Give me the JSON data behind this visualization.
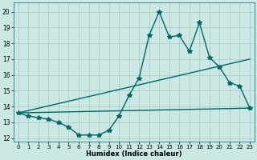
{
  "title": "",
  "xlabel": "Humidex (Indice chaleur)",
  "background_color": "#cce8e4",
  "grid_color": "#aacccc",
  "line_color": "#006666",
  "xlim": [
    -0.5,
    23.5
  ],
  "ylim": [
    11.8,
    20.6
  ],
  "yticks": [
    12,
    13,
    14,
    15,
    16,
    17,
    18,
    19,
    20
  ],
  "xticks": [
    0,
    1,
    2,
    3,
    4,
    5,
    6,
    7,
    8,
    9,
    10,
    11,
    12,
    13,
    14,
    15,
    16,
    17,
    18,
    19,
    20,
    21,
    22,
    23
  ],
  "line1_x": [
    0,
    1,
    2,
    3,
    4,
    5,
    6,
    7,
    8,
    9,
    10,
    11,
    12,
    13,
    14,
    15,
    16,
    17,
    18,
    19,
    20,
    21,
    22,
    23
  ],
  "line1_y": [
    13.6,
    13.4,
    13.3,
    13.2,
    13.0,
    12.7,
    12.2,
    12.2,
    12.2,
    12.5,
    13.4,
    14.7,
    15.8,
    18.5,
    20.0,
    18.4,
    18.5,
    17.5,
    19.3,
    17.1,
    16.5,
    15.5,
    15.3,
    13.9
  ],
  "line2_x": [
    0,
    23
  ],
  "line2_y": [
    13.6,
    17.0
  ],
  "line3_x": [
    0,
    23
  ],
  "line3_y": [
    13.6,
    13.9
  ],
  "marker": "*",
  "markersize": 4,
  "linewidth": 1.0
}
